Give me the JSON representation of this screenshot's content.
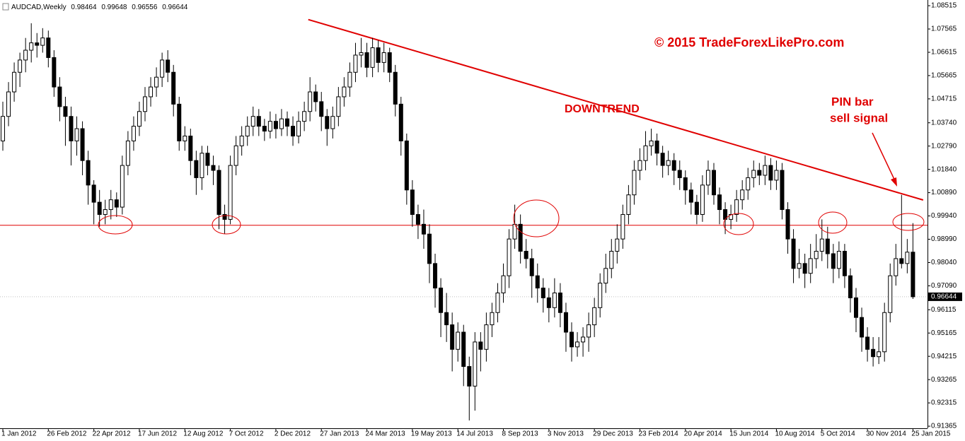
{
  "chart_data": {
    "type": "candlestick",
    "symbol": "AUDCAD,Weekly",
    "annotations": {
      "copyright": "© 2015 TradeForexLikePro.com",
      "trend": "DOWNTREND",
      "pin_line1": "PIN bar",
      "pin_line2": "sell signal"
    },
    "support_level": 0.9956,
    "trendline": {
      "x": [
        53.7,
        161.8
      ],
      "y": [
        1.0795,
        1.0059
      ]
    },
    "up_color": "#ffffff",
    "down_color": "#000000",
    "line_color": "#e00000",
    "ylim": [
      0.9128,
      1.0869
    ],
    "yticks": [
      1.08515,
      1.07565,
      1.06615,
      1.05665,
      1.04715,
      {
        "value": 1.0374,
        "label": "1.03740"
      },
      {
        "value": 1.0279,
        "label": "1.02790"
      },
      {
        "value": 1.0184,
        "label": "1.01840"
      },
      {
        "value": 1.0089,
        "label": "1.00890"
      },
      {
        "value": 0.9994,
        "label": "0.99940"
      },
      {
        "value": 0.9899,
        "label": "0.98990"
      },
      {
        "value": 0.9804,
        "label": "0.98040"
      },
      {
        "value": 0.9709,
        "label": "0.97090"
      },
      0.96115,
      0.95165,
      0.94215,
      0.93265,
      0.92315,
      0.91365
    ],
    "categories": [
      "1 Jan 2012",
      null,
      null,
      null,
      null,
      null,
      null,
      null,
      "26 Feb 2012",
      null,
      null,
      null,
      null,
      null,
      null,
      null,
      "22 Apr 2012",
      null,
      null,
      null,
      null,
      null,
      null,
      null,
      "17 Jun 2012",
      null,
      null,
      null,
      null,
      null,
      null,
      null,
      "12 Aug 2012",
      null,
      null,
      null,
      null,
      null,
      null,
      null,
      "7 Oct 2012",
      null,
      null,
      null,
      null,
      null,
      null,
      null,
      "2 Dec 2012",
      null,
      null,
      null,
      null,
      null,
      null,
      null,
      "27 Jan 2013",
      null,
      null,
      null,
      null,
      null,
      null,
      null,
      "24 Mar 2013",
      null,
      null,
      null,
      null,
      null,
      null,
      null,
      "19 May 2013",
      null,
      null,
      null,
      null,
      null,
      null,
      null,
      "14 Jul 2013",
      null,
      null,
      null,
      null,
      null,
      null,
      null,
      "8 Sep 2013",
      null,
      null,
      null,
      null,
      null,
      null,
      null,
      "3 Nov 2013",
      null,
      null,
      null,
      null,
      null,
      null,
      null,
      "29 Dec 2013",
      null,
      null,
      null,
      null,
      null,
      null,
      null,
      "23 Feb 2014",
      null,
      null,
      null,
      null,
      null,
      null,
      null,
      "20 Apr 2014",
      null,
      null,
      null,
      null,
      null,
      null,
      null,
      "15 Jun 2014",
      null,
      null,
      null,
      null,
      null,
      null,
      null,
      "10 Aug 2014",
      null,
      null,
      null,
      null,
      null,
      null,
      null,
      "5 Oct 2014",
      null,
      null,
      null,
      null,
      null,
      null,
      null,
      "30 Nov 2014",
      null,
      null,
      null,
      null,
      null,
      null,
      null,
      "25 Jan 2015"
    ],
    "candles": [
      [
        1.03,
        1.046,
        1.026,
        1.04
      ],
      [
        1.04,
        1.054,
        1.036,
        1.05
      ],
      [
        1.05,
        1.062,
        1.046,
        1.058
      ],
      [
        1.058,
        1.066,
        1.052,
        1.063
      ],
      [
        1.063,
        1.072,
        1.058,
        1.067
      ],
      [
        1.067,
        1.078,
        1.062,
        1.07
      ],
      [
        1.07,
        1.074,
        1.064,
        1.069
      ],
      [
        1.069,
        1.076,
        1.066,
        1.072
      ],
      [
        1.072,
        1.075,
        1.06,
        1.064
      ],
      [
        1.064,
        1.067,
        1.048,
        1.052
      ],
      [
        1.052,
        1.056,
        1.038,
        1.044
      ],
      [
        1.044,
        1.048,
        1.028,
        1.04
      ],
      [
        1.04,
        1.044,
        1.02,
        1.03
      ],
      [
        1.03,
        1.04,
        1.024,
        1.035
      ],
      [
        1.035,
        1.038,
        1.016,
        1.022
      ],
      [
        1.022,
        1.026,
        1.004,
        1.012
      ],
      [
        1.012,
        1.014,
        0.996,
        1.005
      ],
      [
        1.005,
        1.01,
        0.995,
        1.0
      ],
      [
        1.0,
        1.006,
        0.996,
        1.002
      ],
      [
        1.002,
        1.01,
        0.998,
        1.006
      ],
      [
        1.006,
        1.009,
        0.999,
        1.003
      ],
      [
        1.003,
        1.024,
        1.0,
        1.02
      ],
      [
        1.02,
        1.034,
        1.016,
        1.03
      ],
      [
        1.03,
        1.04,
        1.026,
        1.036
      ],
      [
        1.036,
        1.046,
        1.032,
        1.042
      ],
      [
        1.042,
        1.052,
        1.038,
        1.048
      ],
      [
        1.048,
        1.056,
        1.044,
        1.052
      ],
      [
        1.052,
        1.06,
        1.048,
        1.056
      ],
      [
        1.056,
        1.066,
        1.052,
        1.063
      ],
      [
        1.063,
        1.067,
        1.054,
        1.058
      ],
      [
        1.058,
        1.061,
        1.04,
        1.045
      ],
      [
        1.045,
        1.048,
        1.026,
        1.03
      ],
      [
        1.03,
        1.036,
        1.026,
        1.032
      ],
      [
        1.032,
        1.035,
        1.016,
        1.022
      ],
      [
        1.022,
        1.026,
        1.008,
        1.015
      ],
      [
        1.015,
        1.028,
        1.01,
        1.025
      ],
      [
        1.025,
        1.028,
        1.016,
        1.02
      ],
      [
        1.02,
        1.024,
        1.012,
        1.018
      ],
      [
        1.018,
        1.02,
        0.994,
        1.0
      ],
      [
        1.0,
        1.004,
        0.992,
        0.998
      ],
      [
        0.998,
        1.024,
        0.996,
        1.02
      ],
      [
        1.02,
        1.032,
        1.016,
        1.028
      ],
      [
        1.028,
        1.036,
        1.024,
        1.032
      ],
      [
        1.032,
        1.04,
        1.028,
        1.036
      ],
      [
        1.036,
        1.044,
        1.032,
        1.04
      ],
      [
        1.04,
        1.043,
        1.032,
        1.036
      ],
      [
        1.036,
        1.039,
        1.03,
        1.034
      ],
      [
        1.034,
        1.042,
        1.031,
        1.038
      ],
      [
        1.038,
        1.041,
        1.031,
        1.035
      ],
      [
        1.035,
        1.043,
        1.032,
        1.039
      ],
      [
        1.039,
        1.042,
        1.032,
        1.036
      ],
      [
        1.036,
        1.04,
        1.028,
        1.032
      ],
      [
        1.032,
        1.042,
        1.029,
        1.038
      ],
      [
        1.038,
        1.046,
        1.034,
        1.042
      ],
      [
        1.042,
        1.056,
        1.038,
        1.05
      ],
      [
        1.05,
        1.053,
        1.042,
        1.046
      ],
      [
        1.046,
        1.05,
        1.034,
        1.04
      ],
      [
        1.04,
        1.043,
        1.028,
        1.035
      ],
      [
        1.035,
        1.044,
        1.031,
        1.04
      ],
      [
        1.04,
        1.052,
        1.036,
        1.048
      ],
      [
        1.048,
        1.056,
        1.044,
        1.052
      ],
      [
        1.052,
        1.062,
        1.048,
        1.058
      ],
      [
        1.058,
        1.07,
        1.054,
        1.065
      ],
      [
        1.065,
        1.072,
        1.06,
        1.066
      ],
      [
        1.066,
        1.07,
        1.056,
        1.06
      ],
      [
        1.06,
        1.072,
        1.056,
        1.068
      ],
      [
        1.068,
        1.071,
        1.058,
        1.062
      ],
      [
        1.062,
        1.07,
        1.058,
        1.066
      ],
      [
        1.066,
        1.068,
        1.054,
        1.058
      ],
      [
        1.058,
        1.061,
        1.04,
        1.045
      ],
      [
        1.045,
        1.048,
        1.024,
        1.03
      ],
      [
        1.03,
        1.033,
        1.004,
        1.01
      ],
      [
        1.01,
        1.014,
        0.995,
        1.0
      ],
      [
        1.0,
        1.004,
        0.99,
        0.996
      ],
      [
        0.996,
        1.002,
        0.986,
        0.992
      ],
      [
        0.992,
        0.996,
        0.972,
        0.98
      ],
      [
        0.98,
        0.984,
        0.962,
        0.97
      ],
      [
        0.97,
        0.974,
        0.95,
        0.96
      ],
      [
        0.96,
        0.968,
        0.948,
        0.955
      ],
      [
        0.955,
        0.96,
        0.936,
        0.945
      ],
      [
        0.945,
        0.956,
        0.94,
        0.952
      ],
      [
        0.952,
        0.955,
        0.93,
        0.938
      ],
      [
        0.938,
        0.942,
        0.916,
        0.93
      ],
      [
        0.93,
        0.952,
        0.92,
        0.948
      ],
      [
        0.948,
        0.952,
        0.936,
        0.945
      ],
      [
        0.945,
        0.96,
        0.94,
        0.955
      ],
      [
        0.955,
        0.964,
        0.95,
        0.96
      ],
      [
        0.96,
        0.972,
        0.956,
        0.968
      ],
      [
        0.968,
        0.98,
        0.964,
        0.975
      ],
      [
        0.975,
        0.994,
        0.97,
        0.99
      ],
      [
        0.99,
        1.004,
        0.986,
        0.996
      ],
      [
        0.996,
        1.0,
        0.98,
        0.985
      ],
      [
        0.985,
        0.99,
        0.978,
        0.982
      ],
      [
        0.982,
        0.986,
        0.966,
        0.975
      ],
      [
        0.975,
        0.98,
        0.964,
        0.97
      ],
      [
        0.97,
        0.974,
        0.96,
        0.966
      ],
      [
        0.966,
        0.97,
        0.956,
        0.962
      ],
      [
        0.962,
        0.974,
        0.958,
        0.968
      ],
      [
        0.968,
        0.972,
        0.954,
        0.96
      ],
      [
        0.96,
        0.964,
        0.944,
        0.952
      ],
      [
        0.952,
        0.956,
        0.94,
        0.946
      ],
      [
        0.946,
        0.952,
        0.942,
        0.948
      ],
      [
        0.948,
        0.954,
        0.942,
        0.95
      ],
      [
        0.95,
        0.96,
        0.944,
        0.955
      ],
      [
        0.955,
        0.966,
        0.95,
        0.962
      ],
      [
        0.962,
        0.976,
        0.958,
        0.972
      ],
      [
        0.972,
        0.984,
        0.968,
        0.978
      ],
      [
        0.978,
        0.99,
        0.974,
        0.985
      ],
      [
        0.985,
        0.996,
        0.98,
        0.99
      ],
      [
        0.99,
        1.004,
        0.986,
        1.0
      ],
      [
        1.0,
        1.012,
        0.996,
        1.008
      ],
      [
        1.008,
        1.022,
        1.004,
        1.018
      ],
      [
        1.018,
        1.027,
        1.014,
        1.022
      ],
      [
        1.022,
        1.034,
        1.018,
        1.028
      ],
      [
        1.028,
        1.035,
        1.024,
        1.03
      ],
      [
        1.03,
        1.033,
        1.02,
        1.025
      ],
      [
        1.025,
        1.028,
        1.015,
        1.02
      ],
      [
        1.02,
        1.026,
        1.016,
        1.022
      ],
      [
        1.022,
        1.025,
        1.012,
        1.018
      ],
      [
        1.018,
        1.022,
        1.01,
        1.015
      ],
      [
        1.015,
        1.018,
        1.004,
        1.01
      ],
      [
        1.01,
        1.013,
        1.0,
        1.005
      ],
      [
        1.005,
        1.008,
        0.996,
        1.0
      ],
      [
        1.0,
        1.016,
        0.997,
        1.012
      ],
      [
        1.012,
        1.022,
        1.008,
        1.018
      ],
      [
        1.018,
        1.021,
        1.004,
        1.008
      ],
      [
        1.008,
        1.011,
        0.996,
        1.002
      ],
      [
        1.002,
        1.005,
        0.992,
        0.998
      ],
      [
        0.998,
        1.004,
        0.994,
        1.0
      ],
      [
        1.0,
        1.01,
        0.997,
        1.006
      ],
      [
        1.006,
        1.014,
        1.002,
        1.01
      ],
      [
        1.01,
        1.019,
        1.006,
        1.015
      ],
      [
        1.015,
        1.022,
        1.011,
        1.018
      ],
      [
        1.018,
        1.021,
        1.012,
        1.016
      ],
      [
        1.016,
        1.024,
        1.012,
        1.02
      ],
      [
        1.02,
        1.023,
        1.01,
        1.014
      ],
      [
        1.014,
        1.022,
        1.01,
        1.018
      ],
      [
        1.018,
        1.021,
        0.998,
        1.002
      ],
      [
        1.002,
        1.005,
        0.984,
        0.99
      ],
      [
        0.99,
        0.994,
        0.972,
        0.978
      ],
      [
        0.978,
        0.986,
        0.974,
        0.98
      ],
      [
        0.98,
        0.984,
        0.97,
        0.976
      ],
      [
        0.976,
        0.988,
        0.972,
        0.982
      ],
      [
        0.982,
        0.992,
        0.978,
        0.985
      ],
      [
        0.985,
        0.998,
        0.981,
        0.99
      ],
      [
        0.99,
        0.995,
        0.978,
        0.984
      ],
      [
        0.984,
        0.988,
        0.972,
        0.978
      ],
      [
        0.978,
        0.989,
        0.974,
        0.985
      ],
      [
        0.985,
        0.988,
        0.97,
        0.975
      ],
      [
        0.975,
        0.978,
        0.96,
        0.966
      ],
      [
        0.966,
        0.97,
        0.952,
        0.958
      ],
      [
        0.958,
        0.962,
        0.944,
        0.95
      ],
      [
        0.95,
        0.954,
        0.94,
        0.945
      ],
      [
        0.945,
        0.95,
        0.938,
        0.942
      ],
      [
        0.942,
        0.95,
        0.939,
        0.944
      ],
      [
        0.944,
        0.964,
        0.94,
        0.96
      ],
      [
        0.96,
        0.98,
        0.956,
        0.975
      ],
      [
        0.975,
        0.988,
        0.971,
        0.982
      ],
      [
        0.982,
        1.008,
        0.978,
        0.98
      ],
      [
        0.98,
        0.99,
        0.976,
        0.98464
      ],
      [
        0.98464,
        0.99648,
        0.96556,
        0.96644
      ]
    ]
  }
}
